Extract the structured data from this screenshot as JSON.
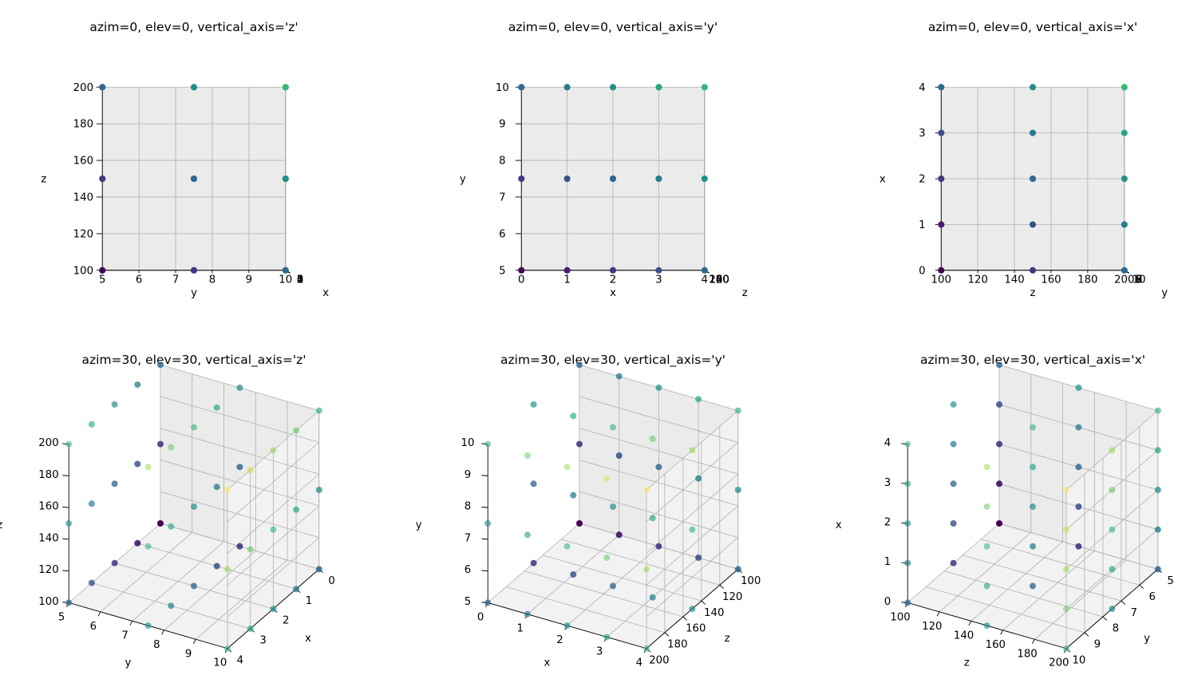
{
  "chart_data": [
    {
      "type": "scatter",
      "title": "azim=0, elev=0, vertical_axis='z'",
      "azim": 0,
      "elev": 0,
      "vertical_axis": "z",
      "xlabel": "x",
      "ylabel": "y",
      "zlabel": "z",
      "xlim": [
        0,
        4
      ],
      "ylim": [
        5,
        10
      ],
      "zlim": [
        100,
        200
      ],
      "x_ticks": [
        "0",
        "1",
        "2",
        "3",
        "4"
      ],
      "y_ticks": [
        "5",
        "6",
        "7",
        "8",
        "9",
        "10"
      ],
      "z_ticks": [
        "100",
        "120",
        "140",
        "160",
        "180",
        "200"
      ],
      "grid": true,
      "colormap": "viridis",
      "color_by": "x+y+z",
      "points": {
        "x": [
          0,
          0,
          0,
          0,
          0,
          0,
          0,
          0,
          0,
          1,
          1,
          1,
          1,
          1,
          1,
          1,
          1,
          1,
          2,
          2,
          2,
          2,
          2,
          2,
          2,
          2,
          2,
          3,
          3,
          3,
          3,
          3,
          3,
          3,
          3,
          3,
          4,
          4,
          4,
          4,
          4,
          4,
          4,
          4,
          4
        ],
        "y": [
          5,
          5,
          5,
          7.5,
          7.5,
          7.5,
          10,
          10,
          10,
          5,
          5,
          5,
          7.5,
          7.5,
          7.5,
          10,
          10,
          10,
          5,
          5,
          5,
          7.5,
          7.5,
          7.5,
          10,
          10,
          10,
          5,
          5,
          5,
          7.5,
          7.5,
          7.5,
          10,
          10,
          10,
          5,
          5,
          5,
          7.5,
          7.5,
          7.5,
          10,
          10,
          10
        ],
        "z": [
          100,
          150,
          200,
          100,
          150,
          200,
          100,
          150,
          200,
          100,
          150,
          200,
          100,
          150,
          200,
          100,
          150,
          200,
          100,
          150,
          200,
          100,
          150,
          200,
          100,
          150,
          200,
          100,
          150,
          200,
          100,
          150,
          200,
          100,
          150,
          200,
          100,
          150,
          200,
          100,
          150,
          200,
          100,
          150,
          200
        ]
      }
    },
    {
      "type": "scatter",
      "title": "azim=0, elev=0, vertical_axis='y'",
      "azim": 0,
      "elev": 0,
      "vertical_axis": "y",
      "xlabel": "x",
      "ylabel": "y",
      "zlabel": "z",
      "xlim": [
        0,
        4
      ],
      "ylim": [
        5,
        10
      ],
      "zlim": [
        100,
        200
      ],
      "x_ticks": [
        "0",
        "1",
        "2",
        "3",
        "4"
      ],
      "y_ticks": [
        "5",
        "6",
        "7",
        "8",
        "9",
        "10"
      ],
      "z_ticks": [
        "100",
        "120",
        "140",
        "160",
        "180",
        "200"
      ],
      "grid": true,
      "colormap": "viridis",
      "color_by": "x+y+z",
      "points": "same as first panel"
    },
    {
      "type": "scatter",
      "title": "azim=0, elev=0, vertical_axis='x'",
      "azim": 0,
      "elev": 0,
      "vertical_axis": "x",
      "xlabel": "x",
      "ylabel": "y",
      "zlabel": "z",
      "xlim": [
        0,
        4
      ],
      "ylim": [
        5,
        10
      ],
      "zlim": [
        100,
        200
      ],
      "x_ticks": [
        "0",
        "1",
        "2",
        "3",
        "4"
      ],
      "y_ticks": [
        "5",
        "6",
        "7",
        "8",
        "9",
        "10"
      ],
      "z_ticks": [
        "100",
        "120",
        "140",
        "160",
        "180",
        "200"
      ],
      "grid": true,
      "colormap": "viridis",
      "color_by": "x+y+z",
      "points": "same as first panel"
    },
    {
      "type": "scatter",
      "title": "azim=30, elev=30, vertical_axis='z'",
      "azim": 30,
      "elev": 30,
      "vertical_axis": "z",
      "xlabel": "x",
      "ylabel": "y",
      "zlabel": "z",
      "xlim": [
        0,
        4
      ],
      "ylim": [
        5,
        10
      ],
      "zlim": [
        100,
        200
      ],
      "x_ticks": [
        "0",
        "1",
        "2",
        "3",
        "4"
      ],
      "y_ticks": [
        "5",
        "6",
        "7",
        "8",
        "9",
        "10"
      ],
      "z_ticks": [
        "100",
        "120",
        "140",
        "160",
        "180",
        "200"
      ],
      "grid": true,
      "colormap": "viridis",
      "color_by": "x+y+z",
      "points": "same as first panel"
    },
    {
      "type": "scatter",
      "title": "azim=30, elev=30, vertical_axis='y'",
      "azim": 30,
      "elev": 30,
      "vertical_axis": "y",
      "xlabel": "x",
      "ylabel": "y",
      "zlabel": "z",
      "xlim": [
        0,
        4
      ],
      "ylim": [
        5,
        10
      ],
      "zlim": [
        100,
        200
      ],
      "x_ticks": [
        "0",
        "1",
        "2",
        "3",
        "4"
      ],
      "y_ticks": [
        "5",
        "6",
        "7",
        "8",
        "9",
        "10"
      ],
      "z_ticks": [
        "100",
        "120",
        "140",
        "160",
        "180",
        "200"
      ],
      "grid": true,
      "colormap": "viridis",
      "color_by": "x+y+z",
      "points": "same as first panel"
    },
    {
      "type": "scatter",
      "title": "azim=30, elev=30, vertical_axis='x'",
      "azim": 30,
      "elev": 30,
      "vertical_axis": "x",
      "xlabel": "x",
      "ylabel": "y",
      "zlabel": "z",
      "xlim": [
        0,
        4
      ],
      "ylim": [
        5,
        10
      ],
      "zlim": [
        100,
        200
      ],
      "x_ticks": [
        "0",
        "1",
        "2",
        "3",
        "4"
      ],
      "y_ticks": [
        "5",
        "6",
        "7",
        "8",
        "9",
        "10"
      ],
      "z_ticks": [
        "100",
        "120",
        "140",
        "160",
        "180",
        "200"
      ],
      "grid": true,
      "colormap": "viridis",
      "color_by": "x+y+z",
      "points": "same as first panel"
    }
  ],
  "colors": {
    "pane": "#f2f2f2",
    "pane_side": "#ebebeb",
    "grid": "#b0b0b0",
    "axis_line": "#000000",
    "viridis": [
      "#440154",
      "#482878",
      "#3e4989",
      "#31688e",
      "#26828e",
      "#1f9e89",
      "#35b779",
      "#6ece58",
      "#b5de2b",
      "#fde725"
    ]
  }
}
